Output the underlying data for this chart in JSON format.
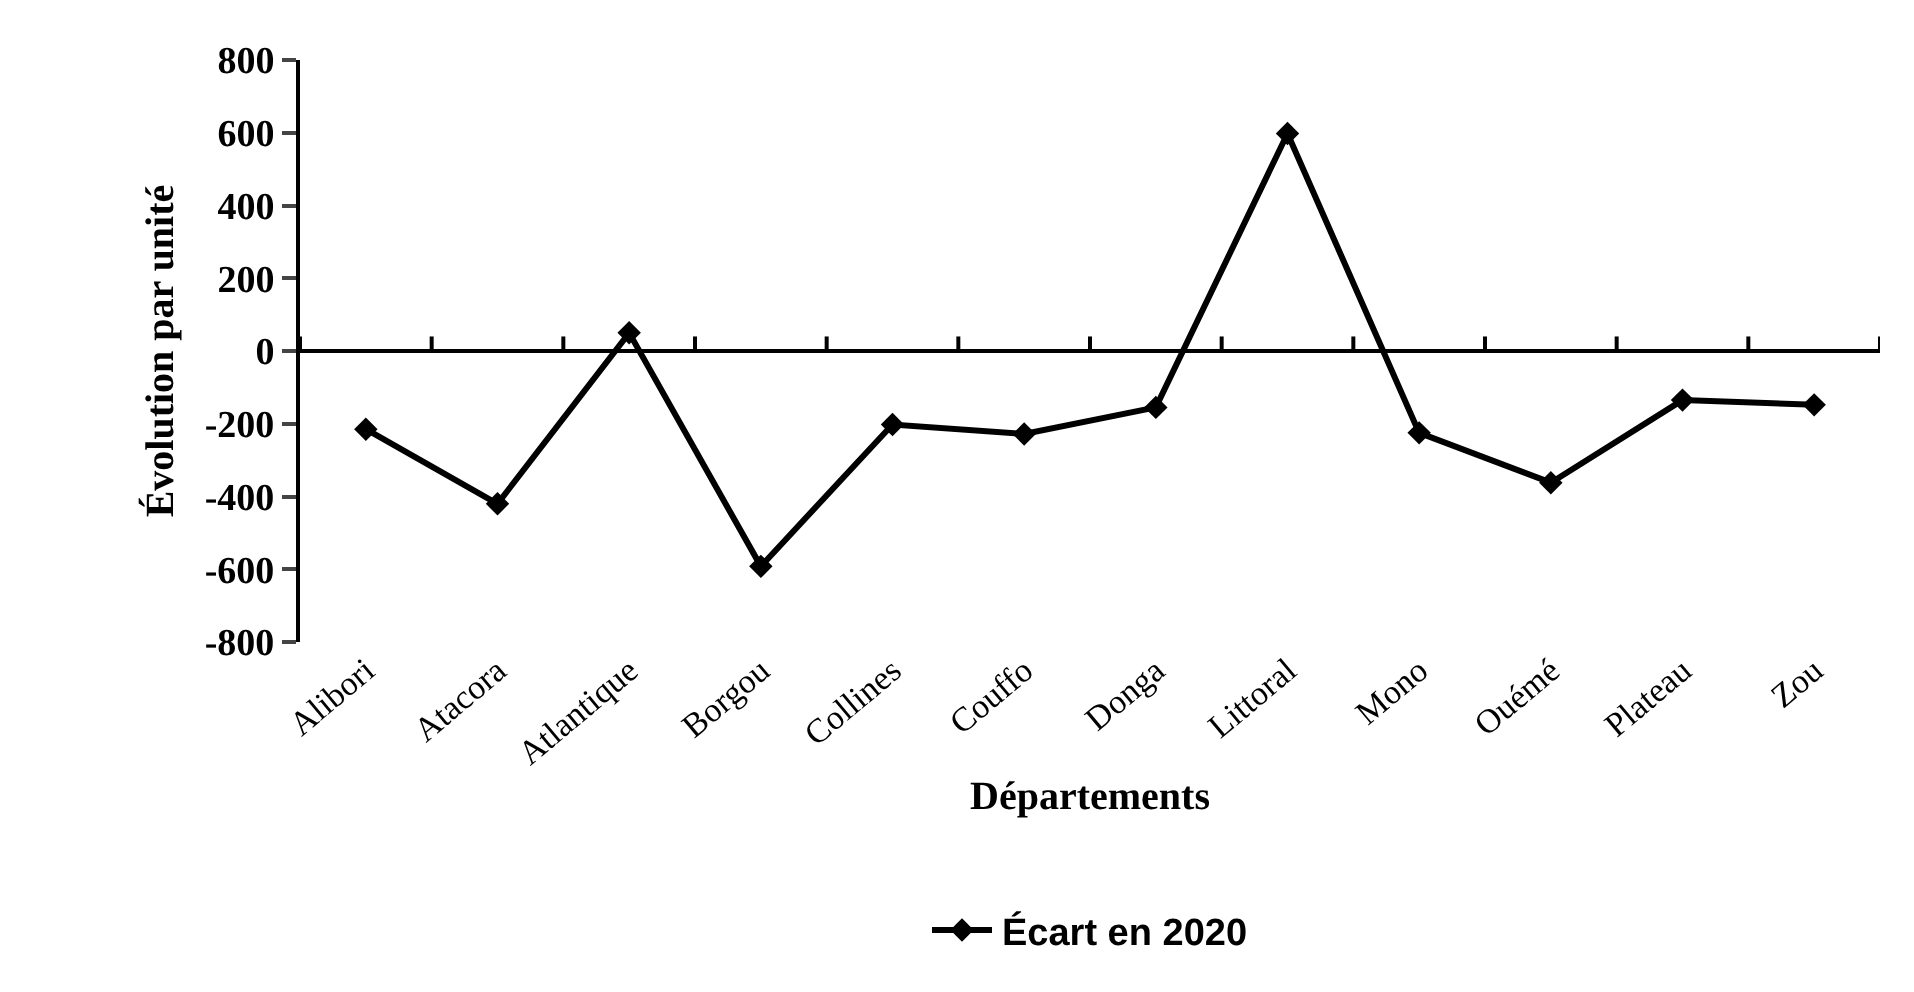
{
  "chart_data": {
    "type": "line",
    "xlabel": "Départements",
    "ylabel": "Évolution par unité",
    "categories": [
      "Alibori",
      "Atacora",
      "Atlantique",
      "Borgou",
      "Collines",
      "Couffo",
      "Donga",
      "Littoral",
      "Mono",
      "Ouémé",
      "Plateau",
      "Zou"
    ],
    "series": [
      {
        "name": "Écart en 2020",
        "color": "#000000",
        "values": [
          -215,
          -420,
          50,
          -592,
          -202,
          -228,
          -155,
          598,
          -225,
          -362,
          -135,
          -148
        ]
      }
    ],
    "ylim": [
      -800,
      800
    ],
    "yticks": [
      -800,
      -600,
      -400,
      -200,
      0,
      200,
      400,
      600,
      800
    ],
    "ref_lines": [
      {
        "axis": "y",
        "value": 0,
        "color": "#000000",
        "line_style": "solid"
      }
    ],
    "grid": false,
    "legend": "bottom",
    "marker": "diamond",
    "line_style": "solid"
  }
}
